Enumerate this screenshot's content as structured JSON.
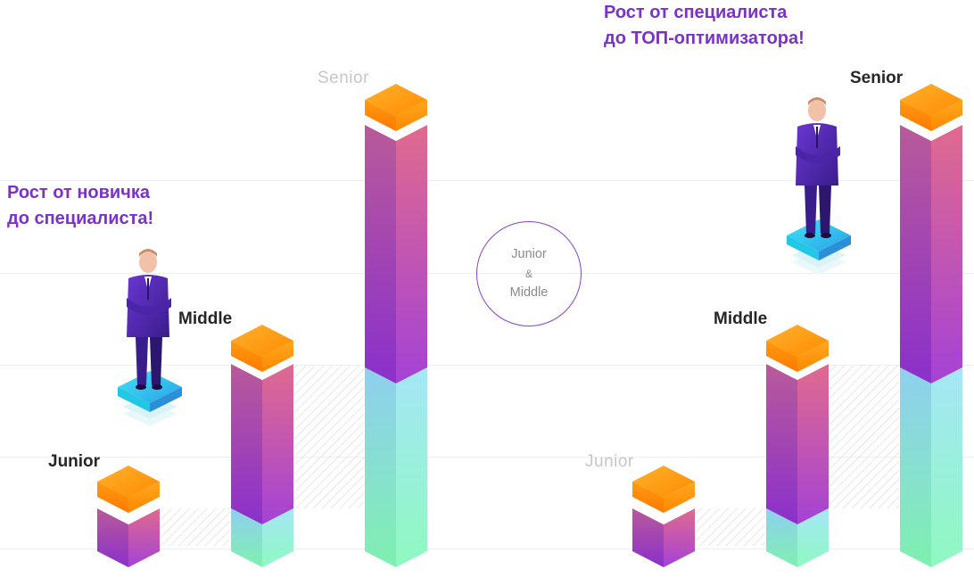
{
  "left_panel": {
    "tagline_line1": "Рост от новичка",
    "tagline_line2": "до специалиста!",
    "levels": {
      "junior": "Junior",
      "middle": "Middle",
      "senior": "Senior"
    },
    "highlighted_levels": [
      "Junior",
      "Middle"
    ],
    "person_stands_on": "Middle"
  },
  "center_badge": {
    "line1": "Junior",
    "line2": "&",
    "line3": "Middle"
  },
  "right_panel": {
    "tagline_line1": "Рост от специалиста",
    "tagline_line2": "до ТОП-оптимизатора!",
    "levels": {
      "junior": "Junior",
      "middle": "Middle",
      "senior": "Senior"
    },
    "highlighted_levels": [
      "Middle",
      "Senior"
    ],
    "person_stands_on": "Senior"
  },
  "colors": {
    "accent_purple": "#7a32c9",
    "cap_orange": "#ff8a00",
    "pillar_pink": "#e0608c",
    "pillar_violet": "#8e35d4",
    "pillar_cyan": "#8de8f2",
    "pillar_green": "#80f7b4",
    "person_suit": "#5a2bb8",
    "pedestal_cyan": "#2fd8f0"
  }
}
